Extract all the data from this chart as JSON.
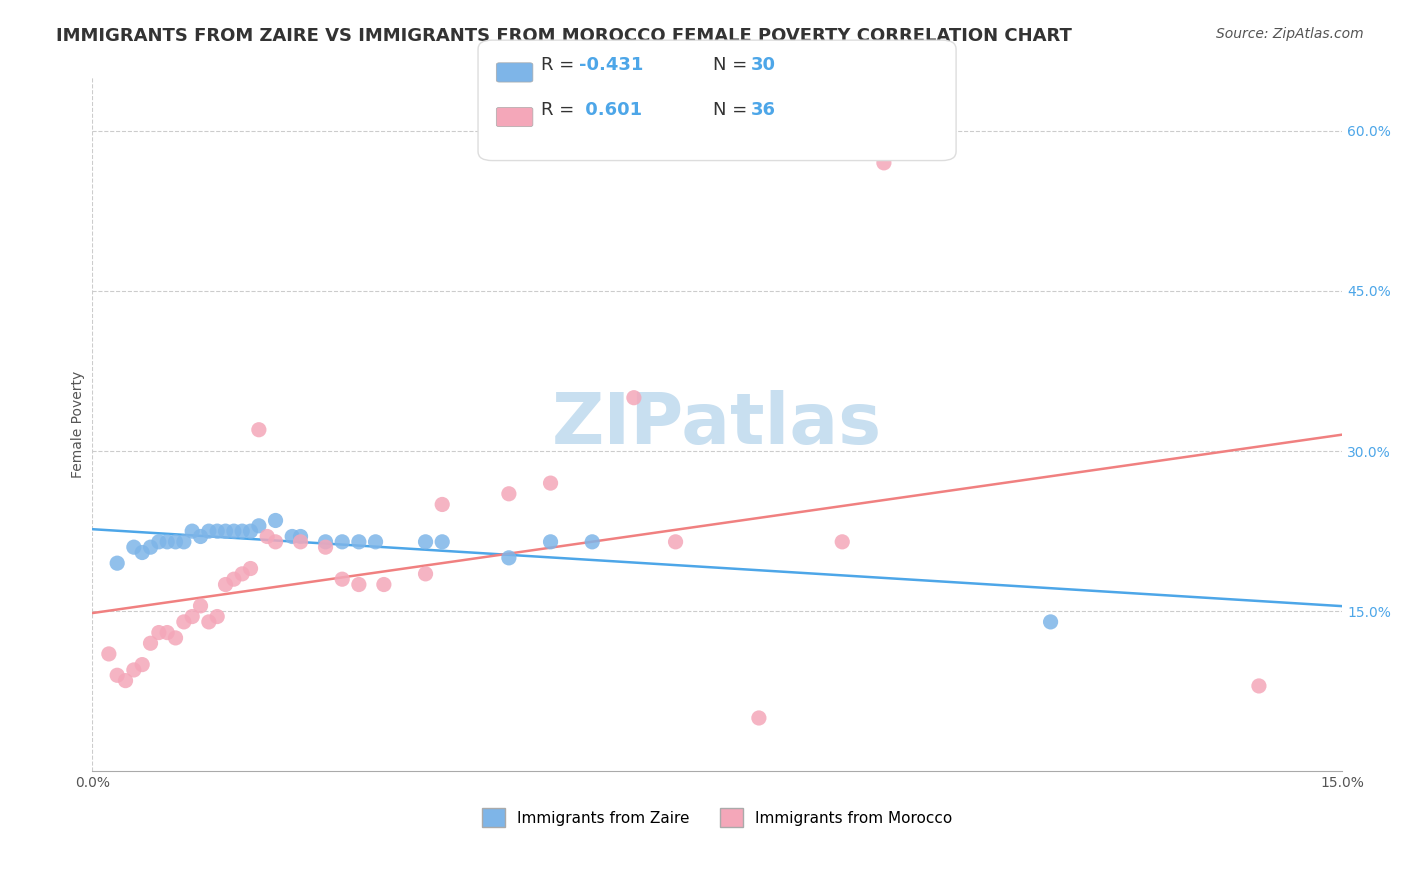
{
  "title": "IMMIGRANTS FROM ZAIRE VS IMMIGRANTS FROM MOROCCO FEMALE POVERTY CORRELATION CHART",
  "source": "Source: ZipAtlas.com",
  "xlabel": "",
  "ylabel": "Female Poverty",
  "xlim": [
    0.0,
    0.15
  ],
  "ylim": [
    0.0,
    0.65
  ],
  "xtick_labels": [
    "0.0%",
    "15.0%"
  ],
  "xtick_vals": [
    0.0,
    0.15
  ],
  "ytick_labels": [
    "15.0%",
    "30.0%",
    "45.0%",
    "60.0%"
  ],
  "ytick_vals": [
    0.15,
    0.3,
    0.45,
    0.6
  ],
  "blue_color": "#7eb5e8",
  "pink_color": "#f4a7b9",
  "line_blue": "#4da6e8",
  "line_pink": "#f08080",
  "watermark": "ZIPatlas",
  "watermark_color": "#c8dff0",
  "zaire_points": [
    [
      0.003,
      0.195
    ],
    [
      0.005,
      0.21
    ],
    [
      0.006,
      0.205
    ],
    [
      0.007,
      0.21
    ],
    [
      0.008,
      0.215
    ],
    [
      0.009,
      0.215
    ],
    [
      0.01,
      0.215
    ],
    [
      0.011,
      0.215
    ],
    [
      0.012,
      0.225
    ],
    [
      0.013,
      0.22
    ],
    [
      0.014,
      0.225
    ],
    [
      0.015,
      0.225
    ],
    [
      0.016,
      0.225
    ],
    [
      0.017,
      0.225
    ],
    [
      0.018,
      0.225
    ],
    [
      0.019,
      0.225
    ],
    [
      0.02,
      0.23
    ],
    [
      0.022,
      0.235
    ],
    [
      0.024,
      0.22
    ],
    [
      0.025,
      0.22
    ],
    [
      0.028,
      0.215
    ],
    [
      0.03,
      0.215
    ],
    [
      0.032,
      0.215
    ],
    [
      0.034,
      0.215
    ],
    [
      0.04,
      0.215
    ],
    [
      0.042,
      0.215
    ],
    [
      0.05,
      0.2
    ],
    [
      0.055,
      0.215
    ],
    [
      0.06,
      0.215
    ],
    [
      0.115,
      0.14
    ]
  ],
  "morocco_points": [
    [
      0.002,
      0.11
    ],
    [
      0.003,
      0.09
    ],
    [
      0.004,
      0.085
    ],
    [
      0.005,
      0.095
    ],
    [
      0.006,
      0.1
    ],
    [
      0.007,
      0.12
    ],
    [
      0.008,
      0.13
    ],
    [
      0.009,
      0.13
    ],
    [
      0.01,
      0.125
    ],
    [
      0.011,
      0.14
    ],
    [
      0.012,
      0.145
    ],
    [
      0.013,
      0.155
    ],
    [
      0.014,
      0.14
    ],
    [
      0.015,
      0.145
    ],
    [
      0.016,
      0.175
    ],
    [
      0.017,
      0.18
    ],
    [
      0.018,
      0.185
    ],
    [
      0.019,
      0.19
    ],
    [
      0.02,
      0.32
    ],
    [
      0.021,
      0.22
    ],
    [
      0.022,
      0.215
    ],
    [
      0.025,
      0.215
    ],
    [
      0.028,
      0.21
    ],
    [
      0.03,
      0.18
    ],
    [
      0.032,
      0.175
    ],
    [
      0.035,
      0.175
    ],
    [
      0.04,
      0.185
    ],
    [
      0.042,
      0.25
    ],
    [
      0.05,
      0.26
    ],
    [
      0.055,
      0.27
    ],
    [
      0.065,
      0.35
    ],
    [
      0.07,
      0.215
    ],
    [
      0.08,
      0.05
    ],
    [
      0.09,
      0.215
    ],
    [
      0.095,
      0.57
    ],
    [
      0.14,
      0.08
    ]
  ],
  "title_fontsize": 13,
  "axis_label_fontsize": 10,
  "tick_fontsize": 10,
  "legend_fontsize": 13
}
